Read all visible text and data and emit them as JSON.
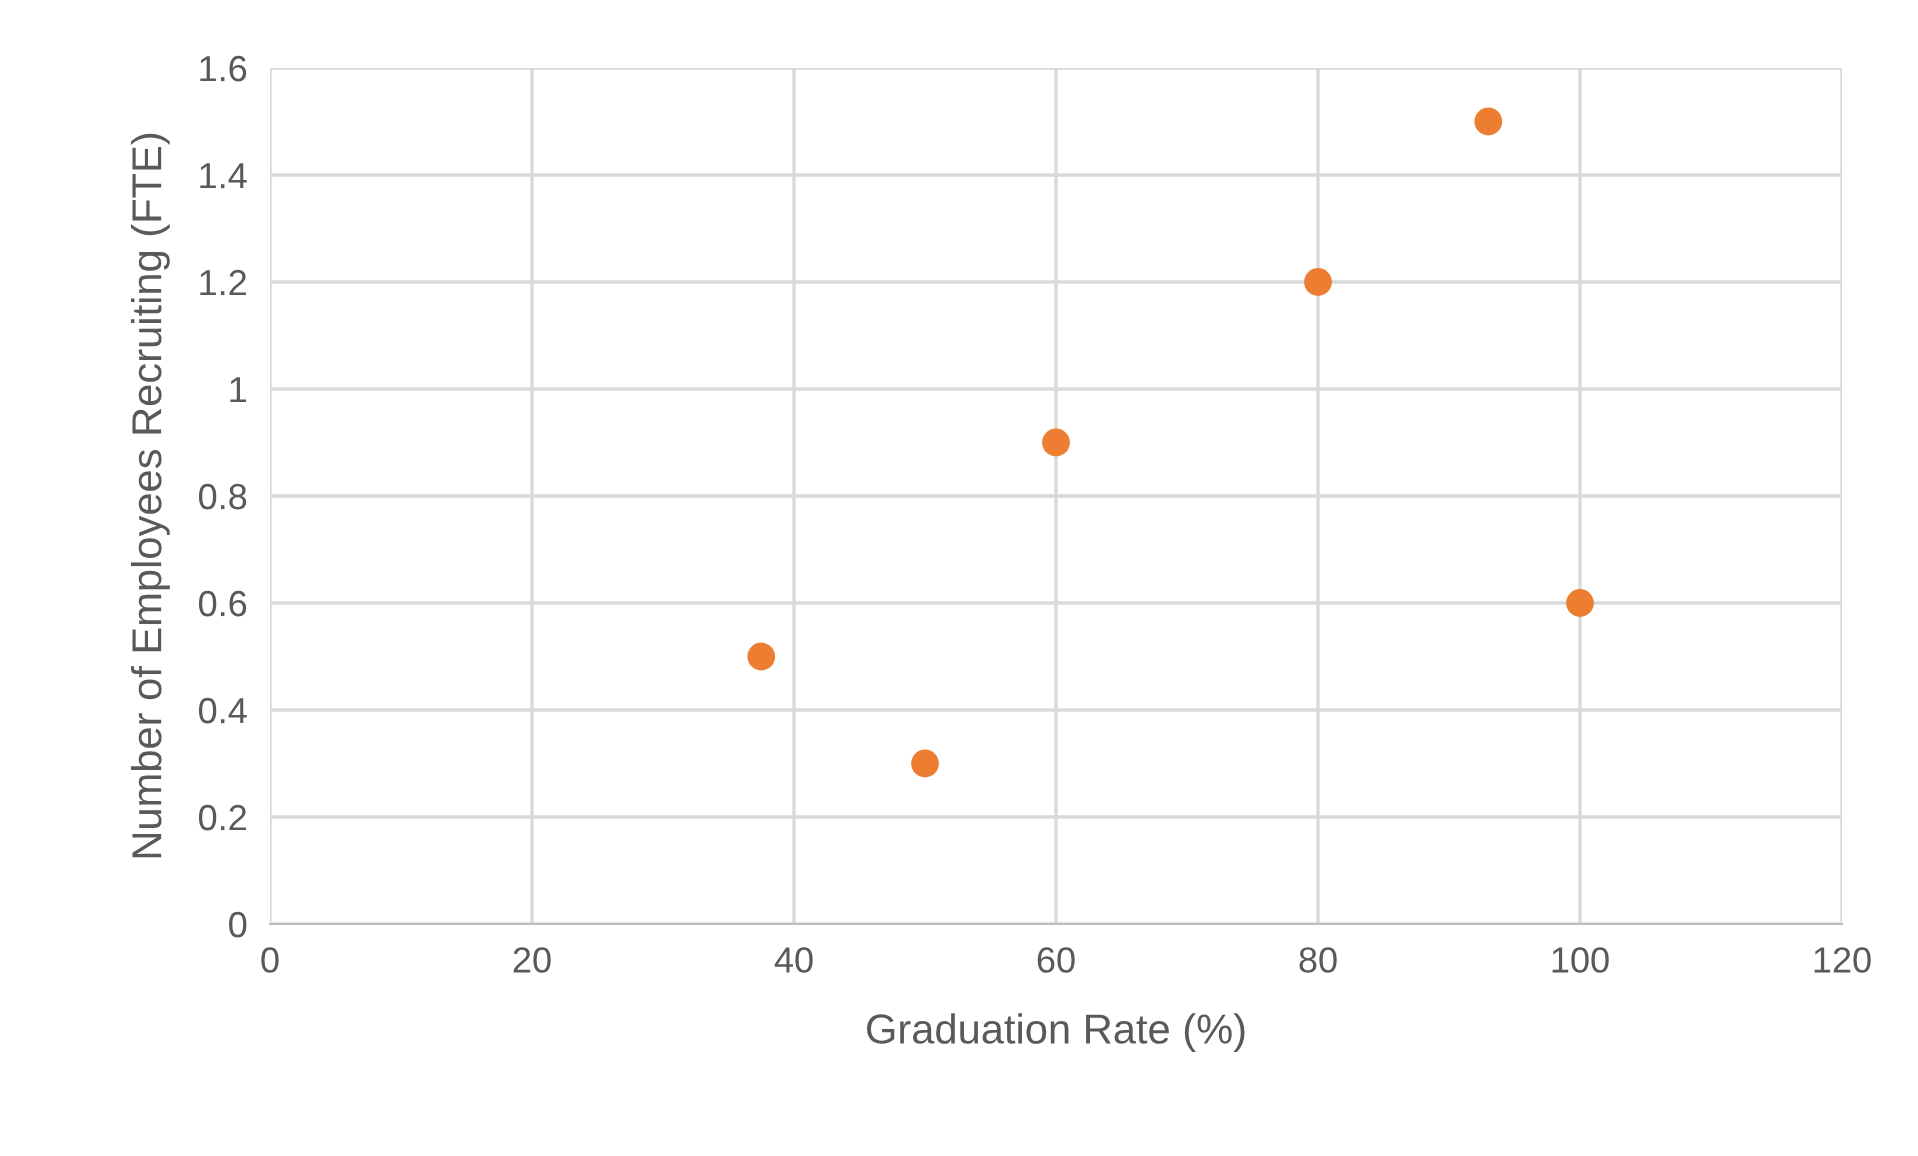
{
  "chart_data": {
    "type": "scatter",
    "xlabel": "Graduation Rate (%)",
    "ylabel": "Number of Employees Recruiting (FTE)",
    "x": [
      37.5,
      50,
      60,
      80,
      93,
      100
    ],
    "values": [
      0.5,
      0.3,
      0.9,
      1.2,
      1.5,
      0.6
    ],
    "color": "#ed7d31",
    "marker": "circle",
    "xlim": [
      0,
      120
    ],
    "xticks": [
      0,
      20,
      40,
      60,
      80,
      100,
      120
    ],
    "ylim": [
      0,
      1.6
    ],
    "yticks": [
      0,
      0.2,
      0.4,
      0.6,
      0.8,
      1,
      1.2,
      1.4,
      1.6
    ],
    "grid": true
  }
}
